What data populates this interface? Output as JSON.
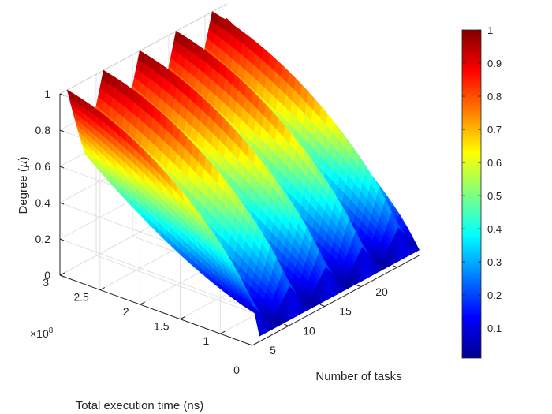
{
  "chart_data": {
    "type": "surface3d",
    "colormap": "jet",
    "grid": true,
    "xlabel": "Number of tasks",
    "ylabel": "Total execution time (ns)",
    "zlabel": "Degree (μ)",
    "zlabel_text": "Degree (",
    "zlabel_symbol": "μ",
    "zlabel_close": ")",
    "y_exponent_base": "×10",
    "y_exponent_power": "8",
    "xlim": [
      0,
      23
    ],
    "ylim": [
      0.6,
      3
    ],
    "y_scale": 100000000,
    "zlim": [
      0,
      1
    ],
    "x_ticks": [
      "0",
      "5",
      "10",
      "15",
      "20"
    ],
    "y_ticks": [
      "1",
      "1.5",
      "2",
      "2.5",
      "3"
    ],
    "z_ticks": [
      "0",
      "0.2",
      "0.4",
      "0.6",
      "0.8",
      "1"
    ],
    "peaks_x": [
      1,
      6,
      11,
      16,
      21
    ],
    "peak_height": 1,
    "x": [
      1,
      23
    ],
    "y": [
      0.6,
      3
    ],
    "colorbar": {
      "ticks": [
        "0.1",
        "0.2",
        "0.3",
        "0.4",
        "0.5",
        "0.6",
        "0.7",
        "0.8",
        "0.9",
        "1"
      ],
      "range": [
        0.01,
        1
      ]
    }
  }
}
